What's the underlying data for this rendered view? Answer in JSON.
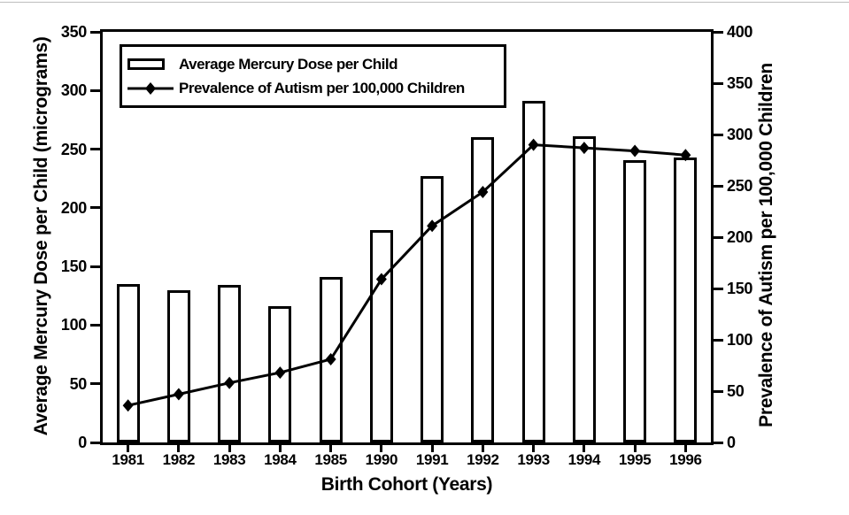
{
  "figure": {
    "background": "#ffffff",
    "ink_color": "#000000",
    "bar_fill": "#ffffff",
    "bar_border": "#000000",
    "line_color": "#000000"
  },
  "chart_data": {
    "type": "bar",
    "subtype": "dual-axis-bar-line-combo",
    "categories": [
      "1981",
      "1982",
      "1983",
      "1984",
      "1985",
      "1990",
      "1991",
      "1992",
      "1993",
      "1994",
      "1995",
      "1996"
    ],
    "series": [
      {
        "name": "Average Mercury Dose per Child",
        "type": "bar",
        "axis": "left",
        "values": [
          135,
          130,
          134,
          116,
          141,
          181,
          227,
          260,
          291,
          261,
          241,
          243
        ]
      },
      {
        "name": "Prevalence of Autism per 100,000 Children",
        "type": "line",
        "axis": "right",
        "marker": "diamond",
        "values": [
          36,
          47,
          58,
          68,
          81,
          159,
          211,
          244,
          290,
          287,
          284,
          280
        ]
      }
    ],
    "xlabel": "Birth Cohort (Years)",
    "left_axis": {
      "label": "Average Mercury Dose per Child (micrograms)",
      "min": 0,
      "max": 350,
      "tick_step": 50,
      "ticks": [
        0,
        50,
        100,
        150,
        200,
        250,
        300,
        350
      ]
    },
    "right_axis": {
      "label": "Prevalence of Autism per 100,000 Children",
      "min": 0,
      "max": 400,
      "tick_step": 50,
      "ticks": [
        0,
        50,
        100,
        150,
        200,
        250,
        300,
        350,
        400
      ]
    },
    "grid": false,
    "legend_position": "top-left-inside",
    "legend_border": true
  }
}
